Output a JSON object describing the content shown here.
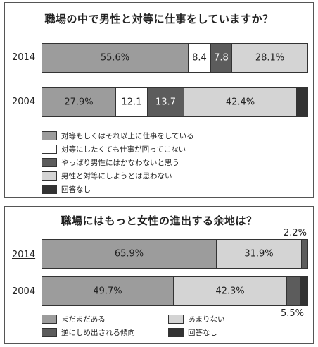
{
  "colors": {
    "c1": "#9c9c9c",
    "c2": "#ffffff",
    "c3": "#5c5c5c",
    "c4": "#d4d4d4",
    "c5": "#333333"
  },
  "chart_data": [
    {
      "type": "bar",
      "orientation": "horizontal-stacked-100",
      "title": "職場の中で男性と対等に仕事をしていますか？",
      "categories": [
        "2014",
        "2004"
      ],
      "series": [
        {
          "name": "対等もしくはそれ以上に仕事をしている",
          "values": [
            55.6,
            27.9
          ],
          "labels": [
            "55.6%",
            "27.9%"
          ]
        },
        {
          "name": "対等にしたくても仕事が回ってこない",
          "values": [
            8.4,
            12.1
          ],
          "labels": [
            "8.4",
            "12.1"
          ]
        },
        {
          "name": "やっぱり男性にはかなわないと思う",
          "values": [
            7.8,
            13.7
          ],
          "labels": [
            "7.8",
            "13.7"
          ]
        },
        {
          "name": "男性と対等にしようとは思わない",
          "values": [
            28.1,
            42.4
          ],
          "labels": [
            "28.1%",
            "42.4%"
          ]
        },
        {
          "name": "回答なし",
          "values": [
            0.1,
            3.9
          ],
          "labels": [
            "",
            ""
          ]
        }
      ],
      "legend_position": "bottom"
    },
    {
      "type": "bar",
      "orientation": "horizontal-stacked-100",
      "title": "職場にはもっと女性の進出する余地は？",
      "categories": [
        "2014",
        "2004"
      ],
      "series": [
        {
          "name": "まだまだある",
          "values": [
            65.9,
            49.7
          ],
          "labels": [
            "65.9%",
            "49.7%"
          ]
        },
        {
          "name": "あまりない",
          "values": [
            31.9,
            42.3
          ],
          "labels": [
            "31.9%",
            "42.3%"
          ]
        },
        {
          "name": "逆にしめ出される傾向",
          "values": [
            2.2,
            5.5
          ],
          "labels": [
            "2.2%",
            "5.5%"
          ]
        },
        {
          "name": "回答なし",
          "values": [
            0,
            2.5
          ],
          "labels": [
            "",
            ""
          ]
        }
      ],
      "legend_position": "bottom"
    }
  ]
}
